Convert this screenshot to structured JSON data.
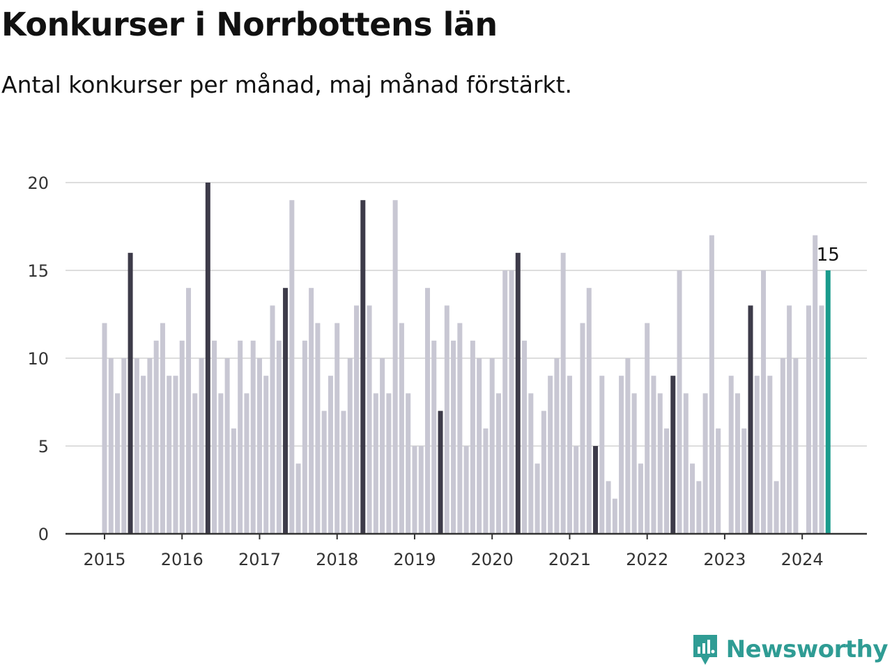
{
  "title": "Konkurser i Norrbottens län",
  "subtitle": "Antal konkurser per månad, maj månad förstärkt.",
  "brand": {
    "name": "Newsworthy",
    "icon": "newsworthy-logo-icon",
    "color": "#2f9c94"
  },
  "colors": {
    "other_months": "#c8c7d3",
    "may": "#3d3b49",
    "latest": "#1a9b8c",
    "grid": "#dddddd",
    "axis": "#333333"
  },
  "chart_data": {
    "type": "bar",
    "start": "2015-01",
    "highlight_month": "May",
    "x_ticks": [
      "2015",
      "2016",
      "2017",
      "2018",
      "2019",
      "2020",
      "2021",
      "2022",
      "2023",
      "2024"
    ],
    "y_ticks": [
      "0",
      "5",
      "10",
      "15",
      "20"
    ],
    "ylim": [
      0,
      20
    ],
    "grid": true,
    "value_label": "15",
    "series": [
      {
        "year": "2015",
        "values": [
          12,
          10,
          8,
          10,
          16,
          10,
          9,
          10,
          11,
          12,
          9,
          9
        ]
      },
      {
        "year": "2016",
        "values": [
          11,
          14,
          8,
          10,
          20,
          11,
          8,
          10,
          6,
          11,
          8,
          11
        ]
      },
      {
        "year": "2017",
        "values": [
          10,
          9,
          13,
          11,
          14,
          19,
          4,
          11,
          14,
          12,
          7,
          9
        ]
      },
      {
        "year": "2018",
        "values": [
          12,
          7,
          10,
          13,
          19,
          13,
          8,
          10,
          8,
          19,
          12,
          8
        ]
      },
      {
        "year": "2019",
        "values": [
          5,
          5,
          14,
          11,
          7,
          13,
          11,
          12,
          5,
          11,
          10,
          6
        ]
      },
      {
        "year": "2020",
        "values": [
          10,
          8,
          15,
          15,
          16,
          11,
          8,
          4,
          7,
          9,
          10,
          16
        ]
      },
      {
        "year": "2021",
        "values": [
          9,
          5,
          12,
          14,
          5,
          9,
          3,
          2,
          9,
          10,
          8,
          4
        ]
      },
      {
        "year": "2022",
        "values": [
          12,
          9,
          8,
          6,
          9,
          15,
          8,
          4,
          3,
          8,
          17,
          6
        ]
      },
      {
        "year": "2023",
        "values": [
          0,
          9,
          8,
          6,
          13,
          9,
          15,
          9,
          3,
          10,
          13,
          10
        ]
      },
      {
        "year": "2024",
        "values": [
          0,
          13,
          17,
          13,
          15
        ]
      }
    ]
  }
}
